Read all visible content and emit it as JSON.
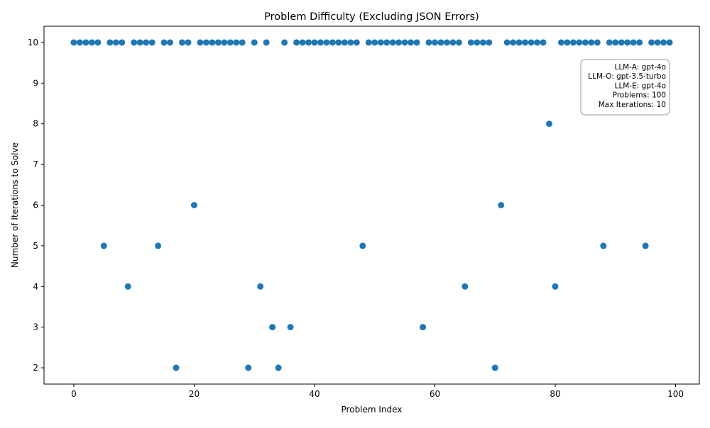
{
  "chart_data": {
    "type": "scatter",
    "title": "Problem Difficulty (Excluding JSON Errors)",
    "xlabel": "Problem Index",
    "ylabel": "Number of Iterations to Solve",
    "xlim": [
      -4.95,
      103.95
    ],
    "ylim": [
      1.6,
      10.4
    ],
    "xticks": [
      0,
      20,
      40,
      60,
      80,
      100
    ],
    "yticks": [
      2,
      3,
      4,
      5,
      6,
      7,
      8,
      9,
      10
    ],
    "marker_color": "#1f77b4",
    "grid": false,
    "x": [
      0,
      1,
      2,
      3,
      4,
      5,
      6,
      7,
      8,
      9,
      10,
      11,
      12,
      13,
      14,
      15,
      16,
      17,
      18,
      19,
      20,
      21,
      22,
      23,
      24,
      25,
      26,
      27,
      28,
      29,
      30,
      31,
      32,
      33,
      34,
      35,
      36,
      37,
      38,
      39,
      40,
      41,
      42,
      43,
      44,
      45,
      46,
      47,
      48,
      49,
      50,
      51,
      52,
      53,
      54,
      55,
      56,
      57,
      58,
      59,
      60,
      61,
      62,
      63,
      64,
      65,
      66,
      67,
      68,
      69,
      70,
      71,
      72,
      73,
      74,
      75,
      76,
      77,
      78,
      79,
      80,
      81,
      82,
      83,
      84,
      85,
      86,
      87,
      88,
      89,
      90,
      91,
      92,
      93,
      94,
      95,
      96,
      97,
      98,
      99
    ],
    "y": [
      10,
      10,
      10,
      10,
      10,
      5,
      10,
      10,
      10,
      4,
      10,
      10,
      10,
      10,
      5,
      10,
      10,
      2,
      10,
      10,
      6,
      10,
      10,
      10,
      10,
      10,
      10,
      10,
      10,
      2,
      10,
      4,
      10,
      3,
      2,
      10,
      3,
      10,
      10,
      10,
      10,
      10,
      10,
      10,
      10,
      10,
      10,
      10,
      5,
      10,
      10,
      10,
      10,
      10,
      10,
      10,
      10,
      10,
      3,
      10,
      10,
      10,
      10,
      10,
      10,
      4,
      10,
      10,
      10,
      10,
      2,
      6,
      10,
      10,
      10,
      10,
      10,
      10,
      10,
      8,
      4,
      10,
      10,
      10,
      10,
      10,
      10,
      10,
      5,
      10,
      10,
      10,
      10,
      10,
      10,
      5,
      10,
      10,
      10,
      10
    ],
    "annotation": {
      "lines": [
        "LLM-A: gpt-4o",
        "LLM-O: gpt-3.5-turbo",
        "LLM-E: gpt-4o",
        "Problems: 100",
        "Max Iterations: 10"
      ],
      "position": "top-right"
    }
  }
}
